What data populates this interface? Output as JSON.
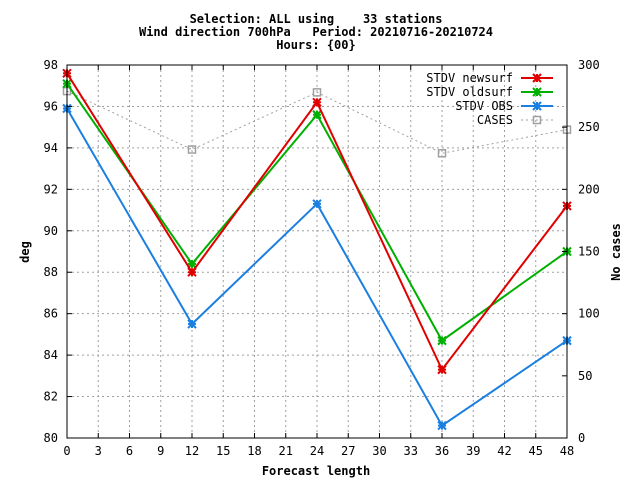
{
  "chart_data": {
    "type": "line",
    "title_lines": [
      "Selection: ALL using    33 stations",
      "Wind direction 700hPa   Period: 20210716-20210724",
      "Hours: {00}"
    ],
    "xlabel": "Forecast length",
    "ylabel": "deg",
    "y2label": "No cases",
    "x_ticks": [
      0,
      3,
      6,
      9,
      12,
      15,
      18,
      21,
      24,
      27,
      30,
      33,
      36,
      39,
      42,
      45,
      48
    ],
    "y_ticks": [
      80,
      82,
      84,
      86,
      88,
      90,
      92,
      94,
      96,
      98
    ],
    "y2_ticks": [
      0,
      50,
      100,
      150,
      200,
      250,
      300
    ],
    "xlim": [
      0,
      48
    ],
    "ylim": [
      80,
      98
    ],
    "y2lim": [
      0,
      300
    ],
    "grid": true,
    "legend_position": "top-right",
    "x": [
      0,
      12,
      24,
      36,
      48
    ],
    "series": [
      {
        "name": "STDV newsurf",
        "color": "#e00000",
        "axis": "y",
        "style": "solid",
        "marker": "star",
        "values": [
          97.6,
          88.0,
          96.2,
          83.3,
          91.2
        ]
      },
      {
        "name": "STDV oldsurf",
        "color": "#00b000",
        "axis": "y",
        "style": "solid",
        "marker": "star",
        "values": [
          97.1,
          88.4,
          95.6,
          84.7,
          89.0
        ]
      },
      {
        "name": "STDV OBS",
        "color": "#1a7fe0",
        "axis": "y",
        "style": "solid",
        "marker": "star",
        "values": [
          95.9,
          85.5,
          91.3,
          80.6,
          84.7
        ]
      },
      {
        "name": "CASES",
        "color": "#a0a0a0",
        "axis": "y2",
        "style": "dotted",
        "marker": "square",
        "values": [
          279,
          232,
          278,
          229,
          248
        ]
      }
    ]
  }
}
